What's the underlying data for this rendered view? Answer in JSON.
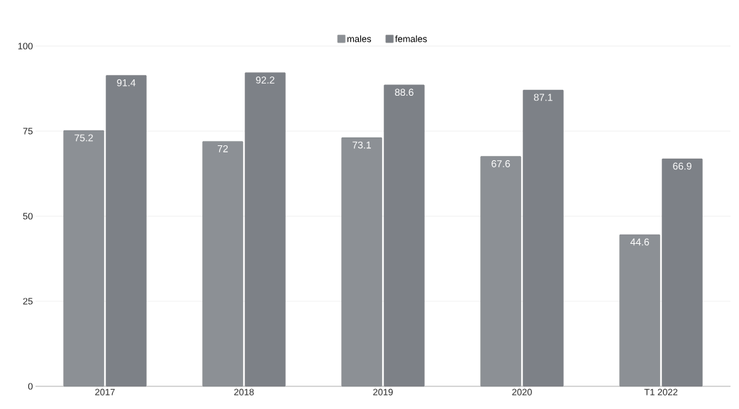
{
  "chart_data": {
    "type": "bar",
    "categories": [
      "2017",
      "2018",
      "2019",
      "2020",
      "T1 2022"
    ],
    "series": [
      {
        "name": "males",
        "color": "#8c9095",
        "values": [
          75.2,
          72,
          73.1,
          67.6,
          44.6
        ]
      },
      {
        "name": "females",
        "color": "#7d8187",
        "values": [
          91.4,
          92.2,
          88.6,
          87.1,
          66.9
        ]
      }
    ],
    "ylim": [
      0,
      100
    ],
    "yticks": [
      0,
      25,
      50,
      75,
      100
    ],
    "grid": "y",
    "legend": "top",
    "data_labels": true
  }
}
